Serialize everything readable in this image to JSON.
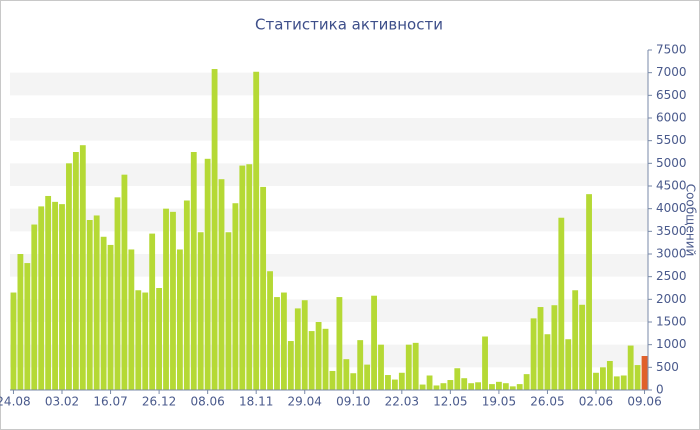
{
  "chart_data": {
    "type": "bar",
    "title": "Статистика активности",
    "y_label": "Сообщений",
    "categories": [
      "24.08",
      null,
      null,
      null,
      null,
      null,
      null,
      "03.02",
      null,
      null,
      null,
      null,
      null,
      null,
      "16.07",
      null,
      null,
      null,
      null,
      null,
      null,
      "26.12",
      null,
      null,
      null,
      null,
      null,
      null,
      "08.06",
      null,
      null,
      null,
      null,
      null,
      null,
      "18.11",
      null,
      null,
      null,
      null,
      null,
      null,
      "29.04",
      null,
      null,
      null,
      null,
      null,
      null,
      "09.10",
      null,
      null,
      null,
      null,
      null,
      null,
      "22.03",
      null,
      null,
      null,
      null,
      null,
      null,
      "12.05",
      null,
      null,
      null,
      null,
      null,
      null,
      "19.05",
      null,
      null,
      null,
      null,
      null,
      null,
      "26.05",
      null,
      null,
      null,
      null,
      null,
      null,
      "02.06",
      null,
      null,
      null,
      null,
      null,
      null,
      "09.06"
    ],
    "values": [
      2150,
      3000,
      2800,
      3650,
      4050,
      4280,
      4150,
      4100,
      5000,
      5250,
      5400,
      3750,
      3850,
      3380,
      3200,
      4250,
      4750,
      3100,
      2200,
      2150,
      3450,
      2250,
      4000,
      3930,
      3100,
      4180,
      5250,
      3480,
      5100,
      7080,
      4650,
      3480,
      4120,
      4950,
      4980,
      7020,
      4480,
      2620,
      2050,
      2150,
      1080,
      1800,
      1980,
      1300,
      1500,
      1350,
      420,
      2050,
      680,
      370,
      1100,
      560,
      2080,
      1000,
      330,
      230,
      380,
      1000,
      1040,
      120,
      320,
      100,
      150,
      220,
      480,
      260,
      150,
      170,
      1180,
      130,
      180,
      150,
      80,
      130,
      350,
      1580,
      1830,
      1230,
      1870,
      3800,
      1120,
      2200,
      1880,
      4320,
      380,
      500,
      640,
      300,
      320,
      980,
      550,
      750
    ],
    "color": "#b5d935",
    "last_color": "#e0602b",
    "ylim": [
      0,
      7500
    ],
    "yticks": [
      0,
      500,
      1000,
      1500,
      2000,
      2500,
      3000,
      3500,
      4000,
      4500,
      5000,
      5500,
      6000,
      6500,
      7000,
      7500
    ],
    "grid_bands": true
  }
}
